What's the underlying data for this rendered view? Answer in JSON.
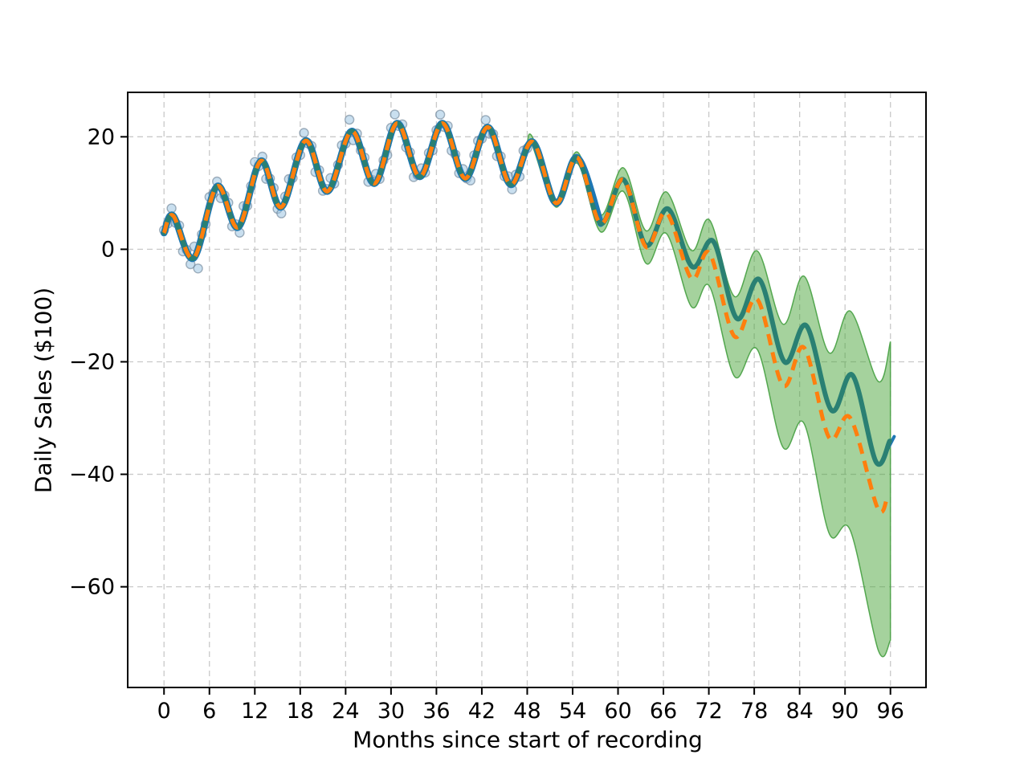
{
  "chart_data": {
    "type": "line",
    "title": "",
    "xlabel": "Months since start of recording",
    "ylabel": "Daily Sales ($100)",
    "xlim": [
      -4.8,
      100.7
    ],
    "ylim": [
      -77.9,
      27.9
    ],
    "xticks": [
      0,
      6,
      12,
      18,
      24,
      30,
      36,
      42,
      48,
      54,
      60,
      66,
      72,
      78,
      84,
      90,
      96
    ],
    "yticks": [
      20,
      0,
      -20,
      -40,
      -60
    ],
    "grid": true,
    "legend": null,
    "colors": {
      "actual_blue": "#1f77b4",
      "forecast_teal": "#2a8073",
      "fit_orange": "#ff7f0e",
      "band_fill": "rgba(76,166,60,0.5)",
      "band_edge": "rgba(70,160,65,0.9)",
      "scatter_fill": "rgba(157,196,226,0.55)",
      "scatter_edge": "rgba(96,118,138,0.55)",
      "grid_color": "#c9c9c9",
      "spine_color": "#000000"
    },
    "series": [
      {
        "name": "observed-scatter",
        "type": "scatter",
        "month_start": 0,
        "month_step": 0.5,
        "jitter": [
          0.3,
          -0.8,
          1.2,
          -0.4,
          0.9,
          -1.5,
          0.5,
          -1.1,
          1.8,
          -3.4,
          0.2,
          -0.7,
          1.4,
          -0.2,
          0.8,
          -1.6,
          0.4,
          1.1,
          -0.9,
          0.6,
          -1.3,
          1.7,
          -0.5,
          0.3,
          2.1,
          -0.6,
          0.9,
          -1.8,
          0.5,
          1.3,
          -0.7,
          -1.2,
          0.8,
          1.9,
          -0.4,
          0.6,
          -1.0,
          1.5,
          -0.3,
          0.7,
          -1.7,
          1.1,
          -0.6,
          0.4,
          1.6,
          -0.9,
          0.2,
          1.2,
          -0.5,
          2.3,
          -1.4,
          0.8,
          -0.2,
          1.0,
          -1.1,
          0.5,
          1.4,
          -0.8,
          0.3,
          -1.5,
          0.9,
          1.8,
          -0.4,
          1.1,
          -1.0,
          0.6,
          -1.6,
          0.2,
          1.3,
          -0.7,
          0.8,
          -1.2,
          0.4,
          1.7,
          -0.5,
          0.9,
          -1.3,
          0.5,
          -0.8,
          1.4,
          -0.2,
          -1.8,
          0.7,
          1.0,
          -0.6,
          1.5,
          -0.9,
          0.3,
          -1.4,
          0.8,
          -0.3,
          1.2,
          -1.0,
          0.6,
          -1.5,
          0.9,
          -0.4
        ]
      },
      {
        "name": "actual-line",
        "type": "line",
        "clip_month": 57.7,
        "stub": [
          [
            95.0,
            -37.2
          ],
          [
            96.5,
            -33.3
          ]
        ]
      },
      {
        "name": "forecast-line",
        "type": "line",
        "points": [
          [
            0,
            2.9
          ],
          [
            1.2,
            6.0
          ],
          [
            3.9,
            -1.6
          ],
          [
            7.0,
            11.2
          ],
          [
            9.8,
            3.9
          ],
          [
            12.8,
            15.7
          ],
          [
            15.5,
            7.5
          ],
          [
            18.7,
            19.3
          ],
          [
            21.6,
            10.3
          ],
          [
            24.8,
            21.0
          ],
          [
            27.8,
            11.7
          ],
          [
            30.8,
            22.4
          ],
          [
            33.8,
            12.9
          ],
          [
            36.8,
            22.4
          ],
          [
            39.8,
            12.6
          ],
          [
            42.8,
            21.7
          ],
          [
            45.8,
            11.5
          ],
          [
            48.7,
            19.1
          ],
          [
            51.8,
            8.2
          ],
          [
            54.6,
            16.3
          ],
          [
            57.7,
            4.6
          ],
          [
            60.7,
            12.4
          ],
          [
            63.7,
            0.7
          ],
          [
            66.6,
            7.2
          ],
          [
            69.8,
            -3.1
          ],
          [
            72.6,
            1.4
          ],
          [
            75.7,
            -12.3
          ],
          [
            78.7,
            -5.4
          ],
          [
            82.0,
            -20.0
          ],
          [
            84.9,
            -13.6
          ],
          [
            88.2,
            -28.6
          ],
          [
            91.0,
            -22.4
          ],
          [
            94.1,
            -37.8
          ],
          [
            95.9,
            -34.1
          ]
        ]
      },
      {
        "name": "fitted-dashed-line",
        "type": "line",
        "dash": [
          14,
          9
        ],
        "points": [
          [
            0,
            2.9
          ],
          [
            1.2,
            6.0
          ],
          [
            3.9,
            -1.6
          ],
          [
            7.0,
            11.2
          ],
          [
            9.8,
            3.9
          ],
          [
            12.8,
            15.7
          ],
          [
            15.5,
            7.5
          ],
          [
            18.7,
            19.3
          ],
          [
            21.6,
            10.3
          ],
          [
            24.8,
            21.0
          ],
          [
            27.8,
            11.7
          ],
          [
            30.8,
            22.4
          ],
          [
            33.8,
            12.9
          ],
          [
            36.8,
            22.4
          ],
          [
            39.8,
            12.6
          ],
          [
            42.8,
            21.7
          ],
          [
            45.8,
            11.5
          ],
          [
            48.7,
            19.1
          ],
          [
            51.8,
            8.2
          ],
          [
            54.6,
            16.3
          ],
          [
            57.7,
            4.6
          ],
          [
            60.7,
            12.4
          ],
          [
            63.7,
            0.4
          ],
          [
            66.4,
            6.5
          ],
          [
            69.7,
            -5.2
          ],
          [
            72.1,
            -0.7
          ],
          [
            75.4,
            -15.5
          ],
          [
            78.4,
            -8.9
          ],
          [
            81.8,
            -24.2
          ],
          [
            84.6,
            -17.5
          ],
          [
            87.9,
            -33.5
          ],
          [
            90.7,
            -30.0
          ],
          [
            94.3,
            -46.0
          ],
          [
            95.6,
            -44.0
          ]
        ]
      },
      {
        "name": "confidence-band",
        "type": "band",
        "points": [
          [
            48.0,
            19.0,
            18.0
          ],
          [
            48.7,
            19.9,
            18.3
          ],
          [
            51.8,
            8.9,
            7.5
          ],
          [
            54.6,
            17.3,
            15.3
          ],
          [
            57.7,
            6.1,
            3.1
          ],
          [
            60.7,
            14.5,
            10.3
          ],
          [
            63.7,
            3.3,
            -2.5
          ],
          [
            66.4,
            10.2,
            2.8
          ],
          [
            69.7,
            -0.2,
            -10.2
          ],
          [
            72.1,
            5.2,
            -6.6
          ],
          [
            75.4,
            -8.4,
            -22.6
          ],
          [
            78.4,
            -0.3,
            -17.8
          ],
          [
            81.8,
            -13.3,
            -35.2
          ],
          [
            84.6,
            -4.8,
            -31.0
          ],
          [
            87.9,
            -18.4,
            -50.5
          ],
          [
            90.7,
            -11.0,
            -50.0
          ],
          [
            94.4,
            -23.5,
            -71.3
          ],
          [
            96.0,
            -16.4,
            -69.5
          ]
        ]
      }
    ]
  }
}
